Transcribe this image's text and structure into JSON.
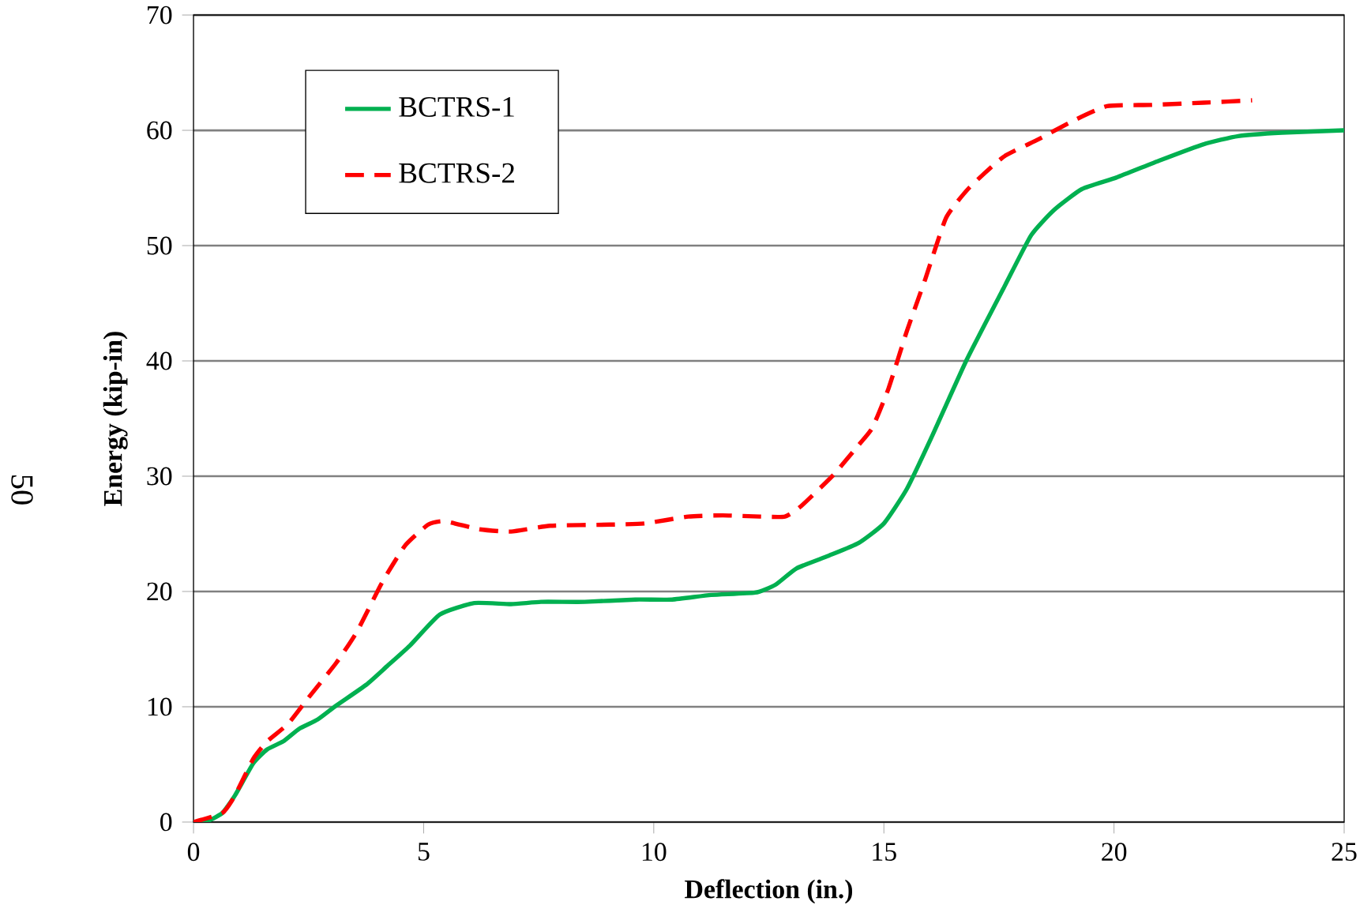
{
  "chart_data": {
    "type": "line",
    "xlabel": "Deflection (in.)",
    "ylabel": "Energy (kip-in)",
    "xlim": [
      0,
      25
    ],
    "xticks": [
      0,
      5,
      10,
      15,
      20,
      25
    ],
    "ylim": [
      0,
      70
    ],
    "yticks": [
      0,
      10,
      20,
      30,
      40,
      50,
      60,
      70
    ],
    "grid": "y",
    "legend": "top left",
    "annotations": [
      "50"
    ],
    "series": [
      {
        "name": "BCTRS-1",
        "color": "#00b050",
        "line_style": "solid",
        "x": [
          0,
          0.34,
          0.63,
          0.9,
          1.3,
          1.6,
          1.95,
          2.3,
          2.7,
          3.1,
          3.75,
          4.2,
          4.7,
          5.35,
          6.1,
          6.9,
          7.55,
          8.5,
          9.6,
          10.4,
          11.25,
          12.2,
          12.65,
          13.1,
          13.8,
          14.45,
          15.0,
          15.5,
          16.05,
          16.8,
          17.6,
          18.2,
          18.7,
          19.3,
          20.05,
          21.0,
          21.95,
          22.7,
          23.65,
          25
        ],
        "values": [
          0,
          0.15,
          0.8,
          2.3,
          5.1,
          6.3,
          7.0,
          8.1,
          8.9,
          10.1,
          11.9,
          13.5,
          15.3,
          18.0,
          19.0,
          18.9,
          19.1,
          19.1,
          19.3,
          19.3,
          19.7,
          19.9,
          20.6,
          22.0,
          23.1,
          24.2,
          25.9,
          28.9,
          33.5,
          40.1,
          46.3,
          50.9,
          53.1,
          54.9,
          55.9,
          57.4,
          58.8,
          59.5,
          59.8,
          60.0
        ]
      },
      {
        "name": "BCTRS-2",
        "color": "#ff0000",
        "line_style": "dashed",
        "x": [
          0,
          0.63,
          0.9,
          1.3,
          1.6,
          2.05,
          2.5,
          3.1,
          3.55,
          4.1,
          4.6,
          5.1,
          5.45,
          6.2,
          6.9,
          7.75,
          9.05,
          9.8,
          10.75,
          11.5,
          12.3,
          12.85,
          13.2,
          13.9,
          14.45,
          14.75,
          15.1,
          15.5,
          15.9,
          16.35,
          16.85,
          17.6,
          18.35,
          19.1,
          19.85,
          20.8,
          21.95,
          23.0
        ],
        "values": [
          0,
          0.8,
          2.3,
          5.5,
          7.0,
          8.5,
          10.8,
          13.8,
          16.5,
          20.8,
          24.0,
          25.8,
          26.1,
          25.4,
          25.2,
          25.7,
          25.8,
          25.9,
          26.5,
          26.6,
          26.5,
          26.5,
          27.4,
          30.1,
          32.7,
          34.2,
          37.6,
          42.6,
          47.1,
          52.4,
          55.0,
          57.7,
          59.2,
          60.8,
          62.1,
          62.2,
          62.4,
          62.6
        ]
      }
    ]
  }
}
